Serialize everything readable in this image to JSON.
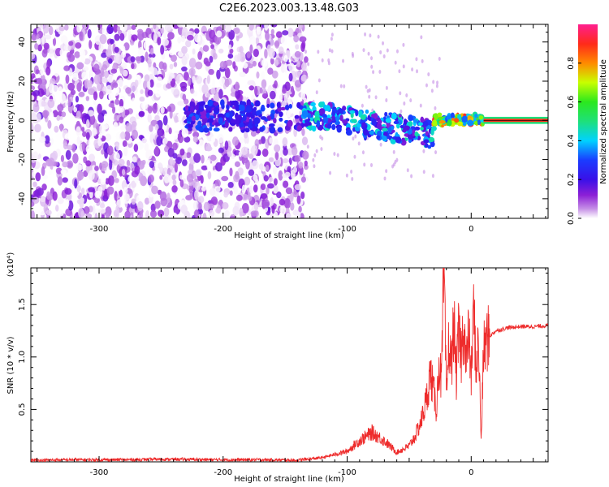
{
  "title": "C2E6.2023.003.13.48.G03",
  "colors": {
    "snr_line": "#ee2b2b",
    "background": "#ffffff",
    "axis": "#000000"
  },
  "chart_data": [
    {
      "type": "heatmap",
      "xlabel": "Height of straight line (km)",
      "ylabel": "Frequency (Hz)",
      "xlim": [
        -355,
        62
      ],
      "ylim": [
        -50,
        49
      ],
      "x_ticks": [
        "-300",
        "-200",
        "-100",
        "0"
      ],
      "x_tick_values": [
        -300,
        -200,
        -100,
        0
      ],
      "y_ticks": [
        "-40",
        "-20",
        "0",
        "20",
        "40"
      ],
      "y_tick_values": [
        -40,
        -20,
        0,
        20,
        40
      ],
      "colorbar": {
        "label": "Normalized spectral amplitude",
        "ticks": [
          "0.0",
          "0.2",
          "0.4",
          "0.6",
          "0.8"
        ],
        "tick_values": [
          0.0,
          0.2,
          0.4,
          0.6,
          0.8
        ],
        "range": [
          0,
          1
        ],
        "colormap": "rainbow (white-purple-blue-cyan-green-yellow-red-magenta)"
      },
      "regions": [
        {
          "x_range": [
            -355,
            -135
          ],
          "freq_range": [
            -50,
            49
          ],
          "amplitude": "low (0.0-0.15), scattered noise"
        },
        {
          "x_range": [
            -230,
            -170
          ],
          "freq_range": [
            -8,
            10
          ],
          "amplitude": "0.15-0.3"
        },
        {
          "x_range": [
            -135,
            -30
          ],
          "freq_range": [
            -20,
            12
          ],
          "amplitude": "0.2-0.45, centre drifting from about 3 Hz to -8 Hz"
        },
        {
          "x_range": [
            -30,
            10
          ],
          "freq_range": [
            -3,
            4
          ],
          "amplitude": "0.4-0.95"
        },
        {
          "x_range": [
            10,
            62
          ],
          "freq_range": [
            -1,
            1
          ],
          "amplitude": "about 0.95 (carrier line at 0 Hz)"
        }
      ]
    },
    {
      "type": "line",
      "xlabel": "Height of straight line (km)",
      "ylabel": "SNR (10 * v/v)",
      "y_multiplier": "(x10⁴)",
      "xlim": [
        -355,
        62
      ],
      "ylim": [
        0,
        18500
      ],
      "x_ticks": [
        "-300",
        "-200",
        "-100",
        "0"
      ],
      "x_tick_values": [
        -300,
        -200,
        -100,
        0
      ],
      "y_ticks": [
        "0.5",
        "1.0",
        "1.5"
      ],
      "y_tick_values": [
        5000,
        10000,
        15000
      ],
      "series": [
        {
          "x": [
            -355,
            -320,
            -280,
            -250,
            -200,
            -170,
            -140,
            -120,
            -110,
            -100,
            -90,
            -80,
            -75,
            -70,
            -60,
            -50,
            -45,
            -40,
            -36,
            -33,
            -30,
            -28,
            -26,
            -24,
            -22,
            -20,
            -18,
            -16,
            -14,
            -12,
            -10,
            -8,
            -6,
            -4,
            -2,
            0,
            2,
            4,
            6,
            8,
            10,
            12,
            15,
            20,
            30,
            40,
            50,
            62
          ],
          "y": [
            150,
            200,
            200,
            250,
            200,
            200,
            150,
            400,
            700,
            1000,
            2000,
            2800,
            2400,
            2000,
            900,
            1500,
            2500,
            4000,
            6000,
            8500,
            6500,
            5000,
            9500,
            7500,
            18500,
            6000,
            11500,
            9000,
            13500,
            8000,
            12500,
            10000,
            13500,
            9000,
            12500,
            8000,
            14500,
            9000,
            11500,
            2000,
            10500,
            11500,
            12000,
            12500,
            12800,
            12900,
            12900,
            13000
          ]
        }
      ]
    }
  ]
}
